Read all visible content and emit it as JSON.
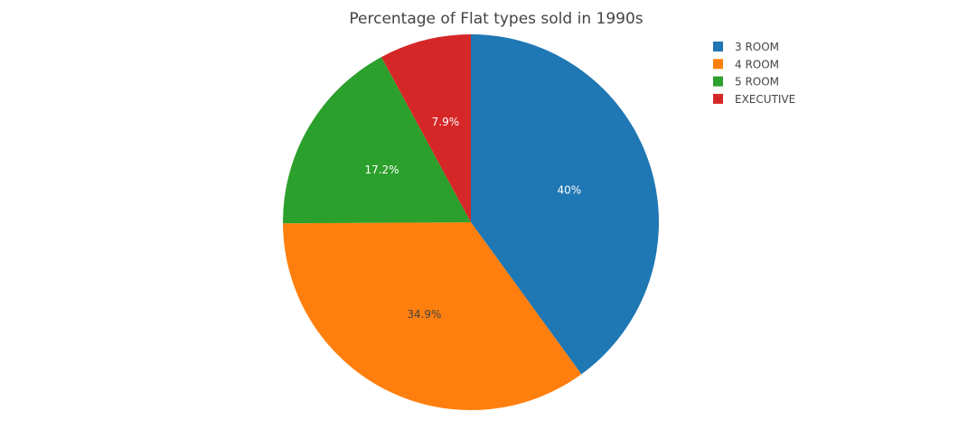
{
  "chart_data": {
    "type": "pie",
    "title": "Percentage of Flat types sold in 1990s",
    "labels": [
      "3 ROOM",
      "4 ROOM",
      "5 ROOM",
      "EXECUTIVE"
    ],
    "values": [
      40.0,
      34.9,
      17.2,
      7.9
    ],
    "value_labels": [
      "40%",
      "34.9%",
      "17.2%",
      "7.9%"
    ],
    "colors": [
      "#1f77b4",
      "#ff7f0e",
      "#2ca02c",
      "#d62728"
    ],
    "label_colors": [
      "#ffffff",
      "#444444",
      "#ffffff",
      "#ffffff"
    ],
    "direction": "clockwise",
    "start": "top",
    "legend_position": "top-right"
  }
}
